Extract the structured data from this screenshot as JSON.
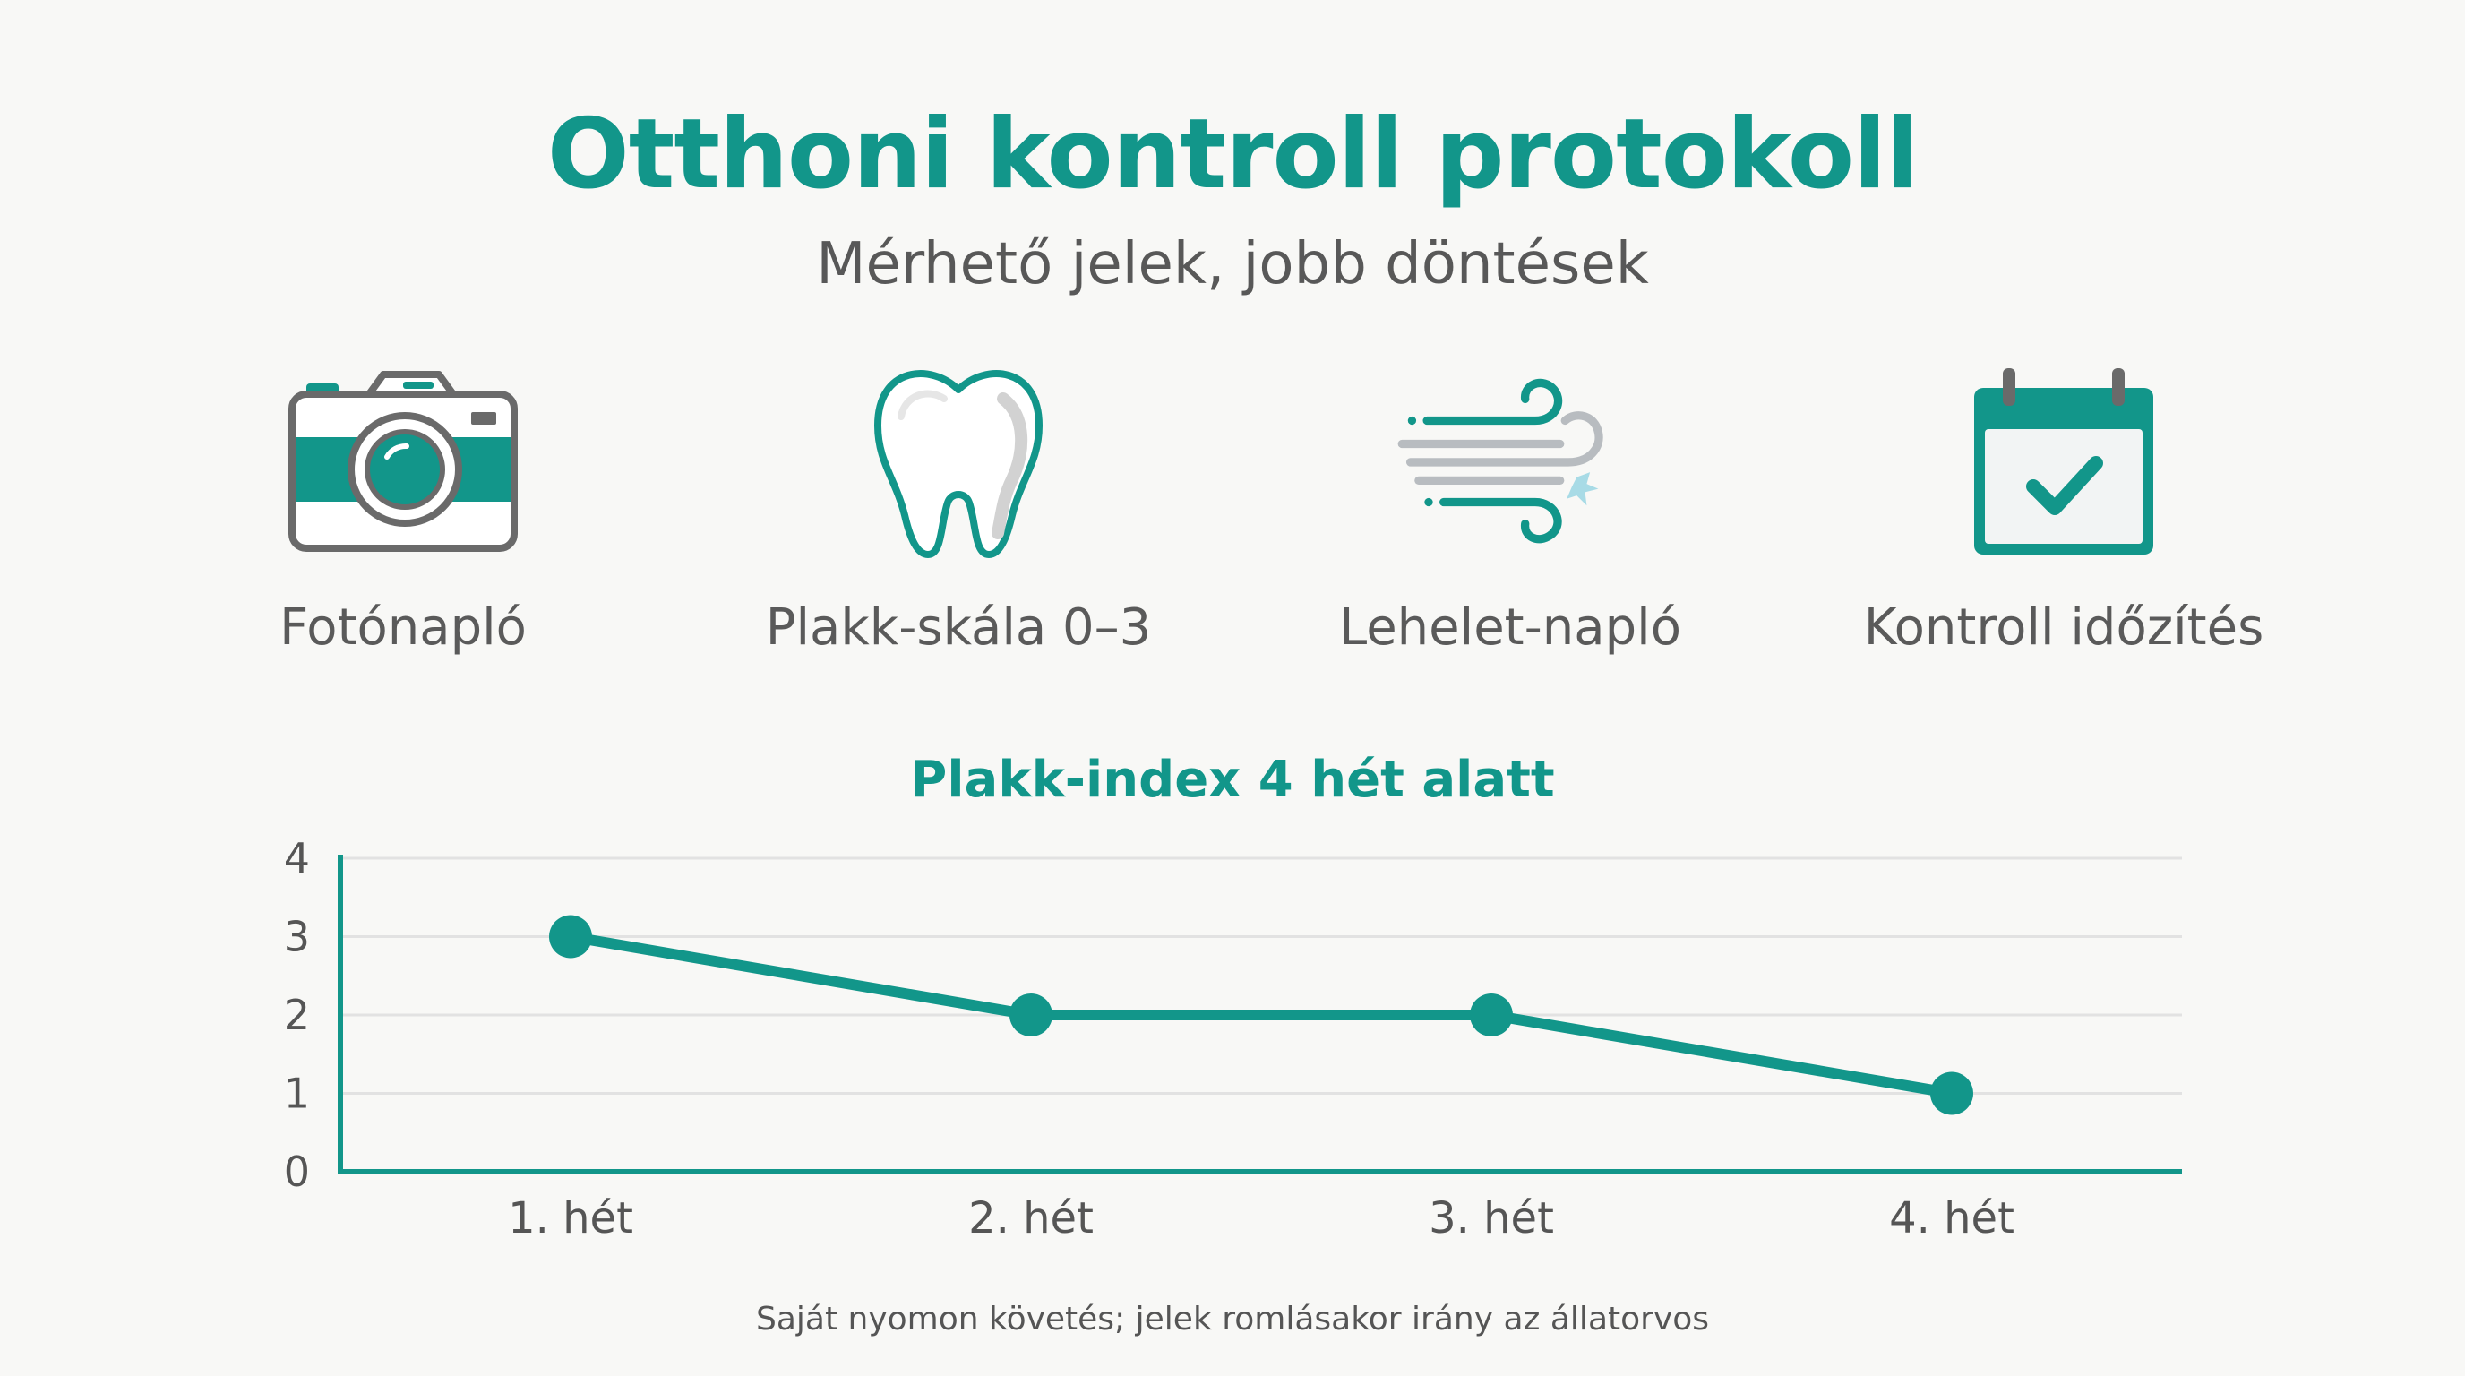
{
  "title": "Otthoni kontroll protokoll",
  "subtitle": "Mérhető jelek, jobb döntések",
  "features": [
    {
      "icon": "camera-icon",
      "label": "Fotónapló"
    },
    {
      "icon": "tooth-icon",
      "label": "Plakk-skála 0–3"
    },
    {
      "icon": "wind-icon",
      "label": "Lehelet-napló"
    },
    {
      "icon": "calendar-check-icon",
      "label": "Kontroll időzítés"
    }
  ],
  "colors": {
    "accent": "#12968a",
    "text": "#5a5a5a",
    "grid": "#e2e2e2",
    "background": "#f8f8f6"
  },
  "chart_data": {
    "type": "line",
    "title": "Plakk-index 4 hét alatt",
    "categories": [
      "1. hét",
      "2. hét",
      "3. hét",
      "4. hét"
    ],
    "series": [
      {
        "values": [
          3,
          2,
          2,
          1
        ]
      }
    ],
    "ylim": [
      0,
      4
    ],
    "yticks": [
      "0",
      "1",
      "2",
      "3",
      "4"
    ],
    "grid": true,
    "legend": "none"
  },
  "footnote": "Saját nyomon követés; jelek romlásakor irány az állatorvos"
}
